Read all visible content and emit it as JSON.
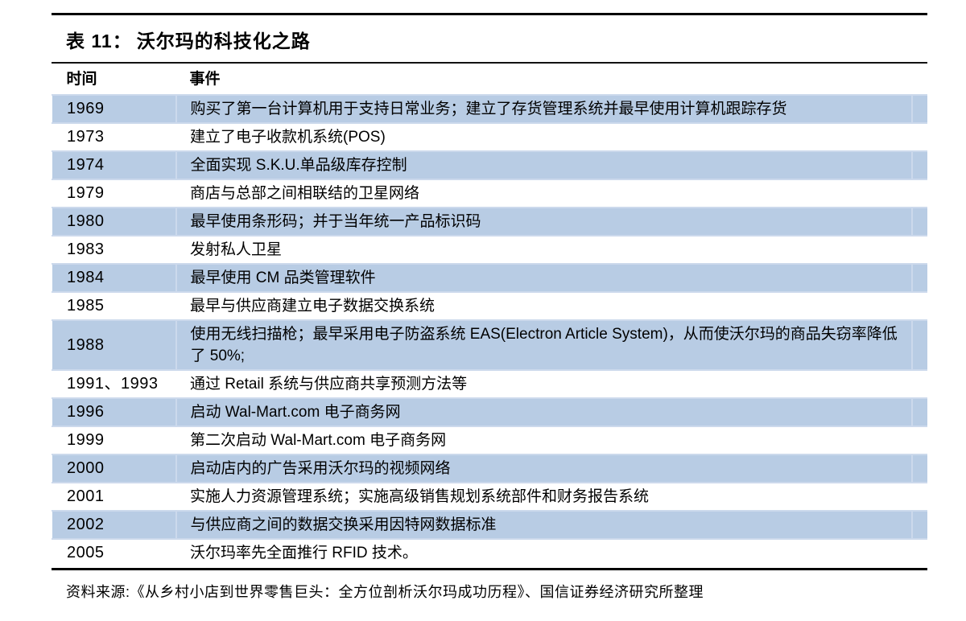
{
  "table": {
    "caption_prefix": "表 11：",
    "caption_title": "沃尔玛的科技化之路",
    "columns": {
      "time": "时间",
      "event": "事件"
    },
    "rows": [
      {
        "year": "1969",
        "event": "购买了第一台计算机用于支持日常业务；建立了存货管理系统并最早使用计算机跟踪存货",
        "highlight": true
      },
      {
        "year": "1973",
        "event": "建立了电子收款机系统(POS)",
        "highlight": false
      },
      {
        "year": "1974",
        "event": "全面实现 S.K.U.单品级库存控制",
        "highlight": true
      },
      {
        "year": "1979",
        "event": "商店与总部之间相联结的卫星网络",
        "highlight": false
      },
      {
        "year": "1980",
        "event": "最早使用条形码；并于当年统一产品标识码",
        "highlight": true
      },
      {
        "year": "1983",
        "event": "发射私人卫星",
        "highlight": false
      },
      {
        "year": "1984",
        "event": "最早使用 CM 品类管理软件",
        "highlight": true
      },
      {
        "year": "1985",
        "event": "最早与供应商建立电子数据交换系统",
        "highlight": false
      },
      {
        "year": "1988",
        "event": "使用无线扫描枪；最早采用电子防盗系统 EAS(Electron Article System)，从而使沃尔玛的商品失窃率降低了 50%;",
        "highlight": true
      },
      {
        "year": "1991、1993",
        "event": "通过 Retail 系统与供应商共享预测方法等",
        "highlight": false
      },
      {
        "year": "1996",
        "event": "启动 Wal-Mart.com 电子商务网",
        "highlight": true
      },
      {
        "year": "1999",
        "event": "第二次启动 Wal-Mart.com 电子商务网",
        "highlight": false
      },
      {
        "year": "2000",
        "event": "启动店内的广告采用沃尔玛的视频网络",
        "highlight": true
      },
      {
        "year": "2001",
        "event": "实施人力资源管理系统；实施高级销售规划系统部件和财务报告系统",
        "highlight": false
      },
      {
        "year": "2002",
        "event": "与供应商之间的数据交换采用因特网数据标准",
        "highlight": true
      },
      {
        "year": "2005",
        "event": "沃尔玛率先全面推行 RFID 技术。",
        "highlight": false
      }
    ]
  },
  "source": {
    "text": "资料来源:《从乡村小店到世界零售巨头：全方位剖析沃尔玛成功历程》、国信证券经济研究所整理"
  },
  "colors": {
    "row_highlight": "#b8cce4",
    "grid_light": "#ccd9ec",
    "rule_black": "#000000"
  }
}
